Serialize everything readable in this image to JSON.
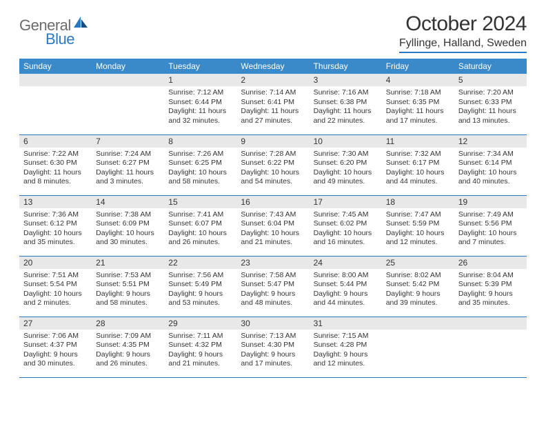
{
  "logo": {
    "text1": "General",
    "text2": "Blue",
    "color_gray": "#6b6b6b",
    "color_blue": "#2b78c2"
  },
  "header": {
    "month_title": "October 2024",
    "location": "Fyllinge, Halland, Sweden"
  },
  "theme": {
    "header_bg": "#3a8ac9",
    "header_fg": "#ffffff",
    "border_color": "#2b78c2",
    "daynum_bg": "#e8e8e8",
    "text_color": "#333333",
    "bg": "#ffffff"
  },
  "day_headers": [
    "Sunday",
    "Monday",
    "Tuesday",
    "Wednesday",
    "Thursday",
    "Friday",
    "Saturday"
  ],
  "weeks": [
    [
      null,
      null,
      {
        "n": "1",
        "sr": "7:12 AM",
        "ss": "6:44 PM",
        "dl": "11 hours and 32 minutes."
      },
      {
        "n": "2",
        "sr": "7:14 AM",
        "ss": "6:41 PM",
        "dl": "11 hours and 27 minutes."
      },
      {
        "n": "3",
        "sr": "7:16 AM",
        "ss": "6:38 PM",
        "dl": "11 hours and 22 minutes."
      },
      {
        "n": "4",
        "sr": "7:18 AM",
        "ss": "6:35 PM",
        "dl": "11 hours and 17 minutes."
      },
      {
        "n": "5",
        "sr": "7:20 AM",
        "ss": "6:33 PM",
        "dl": "11 hours and 13 minutes."
      }
    ],
    [
      {
        "n": "6",
        "sr": "7:22 AM",
        "ss": "6:30 PM",
        "dl": "11 hours and 8 minutes."
      },
      {
        "n": "7",
        "sr": "7:24 AM",
        "ss": "6:27 PM",
        "dl": "11 hours and 3 minutes."
      },
      {
        "n": "8",
        "sr": "7:26 AM",
        "ss": "6:25 PM",
        "dl": "10 hours and 58 minutes."
      },
      {
        "n": "9",
        "sr": "7:28 AM",
        "ss": "6:22 PM",
        "dl": "10 hours and 54 minutes."
      },
      {
        "n": "10",
        "sr": "7:30 AM",
        "ss": "6:20 PM",
        "dl": "10 hours and 49 minutes."
      },
      {
        "n": "11",
        "sr": "7:32 AM",
        "ss": "6:17 PM",
        "dl": "10 hours and 44 minutes."
      },
      {
        "n": "12",
        "sr": "7:34 AM",
        "ss": "6:14 PM",
        "dl": "10 hours and 40 minutes."
      }
    ],
    [
      {
        "n": "13",
        "sr": "7:36 AM",
        "ss": "6:12 PM",
        "dl": "10 hours and 35 minutes."
      },
      {
        "n": "14",
        "sr": "7:38 AM",
        "ss": "6:09 PM",
        "dl": "10 hours and 30 minutes."
      },
      {
        "n": "15",
        "sr": "7:41 AM",
        "ss": "6:07 PM",
        "dl": "10 hours and 26 minutes."
      },
      {
        "n": "16",
        "sr": "7:43 AM",
        "ss": "6:04 PM",
        "dl": "10 hours and 21 minutes."
      },
      {
        "n": "17",
        "sr": "7:45 AM",
        "ss": "6:02 PM",
        "dl": "10 hours and 16 minutes."
      },
      {
        "n": "18",
        "sr": "7:47 AM",
        "ss": "5:59 PM",
        "dl": "10 hours and 12 minutes."
      },
      {
        "n": "19",
        "sr": "7:49 AM",
        "ss": "5:56 PM",
        "dl": "10 hours and 7 minutes."
      }
    ],
    [
      {
        "n": "20",
        "sr": "7:51 AM",
        "ss": "5:54 PM",
        "dl": "10 hours and 2 minutes."
      },
      {
        "n": "21",
        "sr": "7:53 AM",
        "ss": "5:51 PM",
        "dl": "9 hours and 58 minutes."
      },
      {
        "n": "22",
        "sr": "7:56 AM",
        "ss": "5:49 PM",
        "dl": "9 hours and 53 minutes."
      },
      {
        "n": "23",
        "sr": "7:58 AM",
        "ss": "5:47 PM",
        "dl": "9 hours and 48 minutes."
      },
      {
        "n": "24",
        "sr": "8:00 AM",
        "ss": "5:44 PM",
        "dl": "9 hours and 44 minutes."
      },
      {
        "n": "25",
        "sr": "8:02 AM",
        "ss": "5:42 PM",
        "dl": "9 hours and 39 minutes."
      },
      {
        "n": "26",
        "sr": "8:04 AM",
        "ss": "5:39 PM",
        "dl": "9 hours and 35 minutes."
      }
    ],
    [
      {
        "n": "27",
        "sr": "7:06 AM",
        "ss": "4:37 PM",
        "dl": "9 hours and 30 minutes."
      },
      {
        "n": "28",
        "sr": "7:09 AM",
        "ss": "4:35 PM",
        "dl": "9 hours and 26 minutes."
      },
      {
        "n": "29",
        "sr": "7:11 AM",
        "ss": "4:32 PM",
        "dl": "9 hours and 21 minutes."
      },
      {
        "n": "30",
        "sr": "7:13 AM",
        "ss": "4:30 PM",
        "dl": "9 hours and 17 minutes."
      },
      {
        "n": "31",
        "sr": "7:15 AM",
        "ss": "4:28 PM",
        "dl": "9 hours and 12 minutes."
      },
      null,
      null
    ]
  ],
  "labels": {
    "sunrise": "Sunrise:",
    "sunset": "Sunset:",
    "daylight": "Daylight:"
  }
}
